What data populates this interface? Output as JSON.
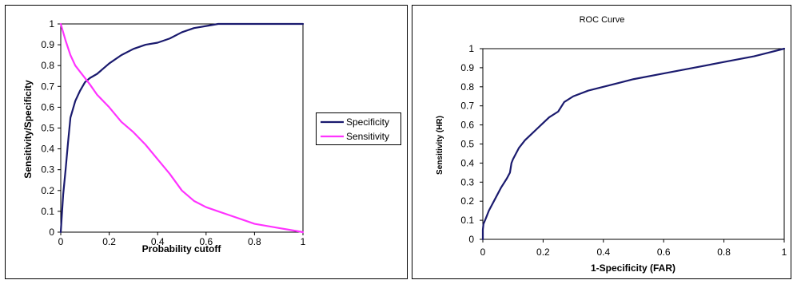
{
  "chart_data": [
    {
      "type": "line",
      "title": "",
      "xlabel": "Probability cutoff",
      "ylabel": "Sensitivity/Specificity",
      "xlim": [
        0,
        1
      ],
      "ylim": [
        0,
        1
      ],
      "x_ticks": [
        "0",
        "0.2",
        "0.4",
        "0.6",
        "0.8",
        "1"
      ],
      "y_ticks": [
        "0",
        "0.1",
        "0.2",
        "0.3",
        "0.4",
        "0.5",
        "0.6",
        "0.7",
        "0.8",
        "0.9",
        "1"
      ],
      "grid": false,
      "legend_position": "right",
      "series": [
        {
          "name": "Specificity",
          "color": "#1a1a6e",
          "points": [
            [
              0,
              0
            ],
            [
              0.01,
              0.18
            ],
            [
              0.02,
              0.3
            ],
            [
              0.03,
              0.43
            ],
            [
              0.04,
              0.55
            ],
            [
              0.06,
              0.63
            ],
            [
              0.08,
              0.68
            ],
            [
              0.1,
              0.72
            ],
            [
              0.12,
              0.74
            ],
            [
              0.15,
              0.76
            ],
            [
              0.2,
              0.81
            ],
            [
              0.25,
              0.85
            ],
            [
              0.3,
              0.88
            ],
            [
              0.35,
              0.9
            ],
            [
              0.4,
              0.91
            ],
            [
              0.45,
              0.93
            ],
            [
              0.5,
              0.96
            ],
            [
              0.55,
              0.98
            ],
            [
              0.6,
              0.99
            ],
            [
              0.65,
              1.0
            ],
            [
              0.7,
              1.0
            ],
            [
              0.8,
              1.0
            ],
            [
              0.9,
              1.0
            ],
            [
              1.0,
              1.0
            ]
          ]
        },
        {
          "name": "Sensitivity",
          "color": "#ff33ff",
          "points": [
            [
              0,
              1.0
            ],
            [
              0.02,
              0.92
            ],
            [
              0.04,
              0.85
            ],
            [
              0.06,
              0.8
            ],
            [
              0.08,
              0.77
            ],
            [
              0.1,
              0.74
            ],
            [
              0.12,
              0.71
            ],
            [
              0.15,
              0.66
            ],
            [
              0.2,
              0.6
            ],
            [
              0.25,
              0.53
            ],
            [
              0.3,
              0.48
            ],
            [
              0.35,
              0.42
            ],
            [
              0.4,
              0.35
            ],
            [
              0.45,
              0.28
            ],
            [
              0.5,
              0.2
            ],
            [
              0.55,
              0.15
            ],
            [
              0.6,
              0.12
            ],
            [
              0.65,
              0.1
            ],
            [
              0.7,
              0.08
            ],
            [
              0.75,
              0.06
            ],
            [
              0.8,
              0.04
            ],
            [
              0.85,
              0.03
            ],
            [
              0.9,
              0.02
            ],
            [
              0.95,
              0.01
            ],
            [
              1.0,
              0.0
            ]
          ]
        }
      ]
    },
    {
      "type": "line",
      "title": "ROC Curve",
      "xlabel": "1-Specificity (FAR)",
      "ylabel": "Sensitivity (HR)",
      "xlim": [
        0,
        1
      ],
      "ylim": [
        0,
        1
      ],
      "x_ticks": [
        "0",
        "0.2",
        "0.4",
        "0.6",
        "0.8",
        "1"
      ],
      "y_ticks": [
        "0",
        "0.1",
        "0.2",
        "0.3",
        "0.4",
        "0.5",
        "0.6",
        "0.7",
        "0.8",
        "0.9",
        "1"
      ],
      "grid": false,
      "series": [
        {
          "name": "",
          "color": "#1a1a6e",
          "points": [
            [
              0,
              0
            ],
            [
              0.0,
              0.05
            ],
            [
              0.002,
              0.08
            ],
            [
              0.01,
              0.11
            ],
            [
              0.02,
              0.15
            ],
            [
              0.04,
              0.21
            ],
            [
              0.06,
              0.27
            ],
            [
              0.08,
              0.32
            ],
            [
              0.09,
              0.35
            ],
            [
              0.095,
              0.4
            ],
            [
              0.1,
              0.42
            ],
            [
              0.12,
              0.48
            ],
            [
              0.14,
              0.52
            ],
            [
              0.16,
              0.55
            ],
            [
              0.18,
              0.58
            ],
            [
              0.2,
              0.61
            ],
            [
              0.22,
              0.64
            ],
            [
              0.25,
              0.67
            ],
            [
              0.27,
              0.72
            ],
            [
              0.3,
              0.75
            ],
            [
              0.35,
              0.78
            ],
            [
              0.4,
              0.8
            ],
            [
              0.45,
              0.82
            ],
            [
              0.5,
              0.84
            ],
            [
              0.6,
              0.87
            ],
            [
              0.7,
              0.9
            ],
            [
              0.8,
              0.93
            ],
            [
              0.9,
              0.96
            ],
            [
              0.95,
              0.98
            ],
            [
              1.0,
              1.0
            ]
          ]
        }
      ]
    }
  ]
}
